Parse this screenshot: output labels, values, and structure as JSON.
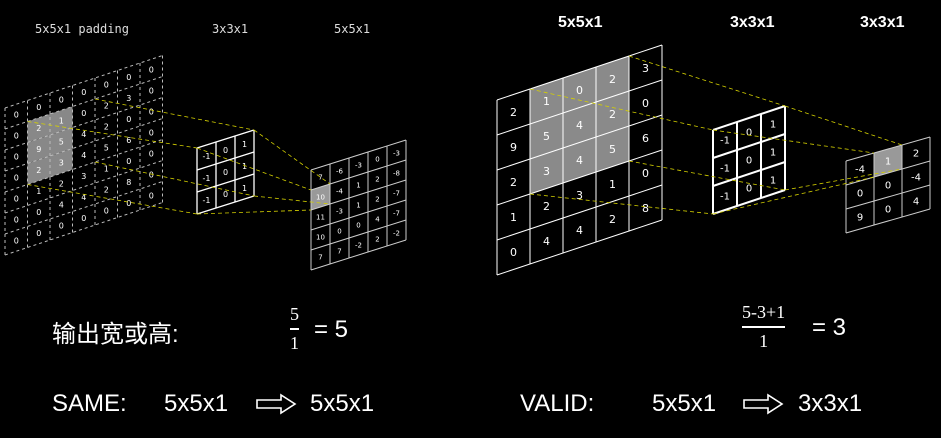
{
  "titles": {
    "left_input": "5x5x1 padding",
    "left_kernel": "3x3x1",
    "left_output": "5x5x1",
    "right_input": "5x5x1",
    "right_kernel": "3x3x1",
    "right_output": "3x3x1"
  },
  "left": {
    "padded_input": [
      [
        "0",
        "0",
        "0",
        "0",
        "0",
        "0",
        "0"
      ],
      [
        "0",
        "2",
        "1",
        "0",
        "2",
        "3",
        "0"
      ],
      [
        "0",
        "9",
        "5",
        "4",
        "2",
        "0",
        "0"
      ],
      [
        "0",
        "2",
        "3",
        "4",
        "5",
        "6",
        "0"
      ],
      [
        "0",
        "1",
        "2",
        "3",
        "1",
        "0",
        "0"
      ],
      [
        "0",
        "0",
        "4",
        "4",
        "2",
        "8",
        "0"
      ],
      [
        "0",
        "0",
        "0",
        "0",
        "0",
        "0",
        "0"
      ]
    ],
    "kernel": [
      [
        "-1",
        "0",
        "1"
      ],
      [
        "-1",
        "0",
        "1"
      ],
      [
        "-1",
        "0",
        "1"
      ]
    ],
    "output": [
      [
        "7",
        "-6",
        "-3",
        "0",
        "-3"
      ],
      [
        "10",
        "-4",
        "1",
        "2",
        "-8"
      ],
      [
        "11",
        "-3",
        "1",
        "2",
        "-7"
      ],
      [
        "10",
        "0",
        "0",
        "4",
        "-7"
      ],
      [
        "7",
        "7",
        "-2",
        "2",
        "-2"
      ]
    ]
  },
  "right": {
    "input": [
      [
        "",
        "",
        "0",
        "2",
        "3"
      ],
      [
        "2",
        "1",
        "4",
        "2",
        "0"
      ],
      [
        "9",
        "5",
        "4",
        "5",
        "6"
      ],
      [
        "2",
        "3",
        "3",
        "1",
        "0"
      ],
      [
        "1",
        "2",
        "4",
        "2",
        "8"
      ],
      [
        "0",
        "4",
        "",
        "",
        ""
      ]
    ],
    "kernel": [
      [
        "-1",
        "0",
        "1"
      ],
      [
        "-1",
        "0",
        "1"
      ],
      [
        "-1",
        "0",
        "1"
      ]
    ],
    "output": [
      [
        "1",
        "2"
      ],
      [
        "-4",
        "0",
        "-4"
      ],
      [
        "0",
        "0",
        "4"
      ],
      [
        "9",
        "0",
        "0"
      ]
    ]
  },
  "formula_left": {
    "label": "输出宽或高:",
    "numerator": "5",
    "denominator": "1",
    "result": "= 5"
  },
  "formula_right": {
    "numerator": "5-3+1",
    "denominator": "1",
    "result": "= 3"
  },
  "same_row": {
    "label": "SAME:",
    "from": "5x5x1",
    "to": "5x5x1"
  },
  "valid_row": {
    "label": "VALID:",
    "from": "5x5x1",
    "to": "3x3x1"
  },
  "colors": {
    "grid": "#ffffff",
    "dashed": "#bbbbbb",
    "highlight": "#9a9a9a",
    "guide": "#d4d000"
  }
}
